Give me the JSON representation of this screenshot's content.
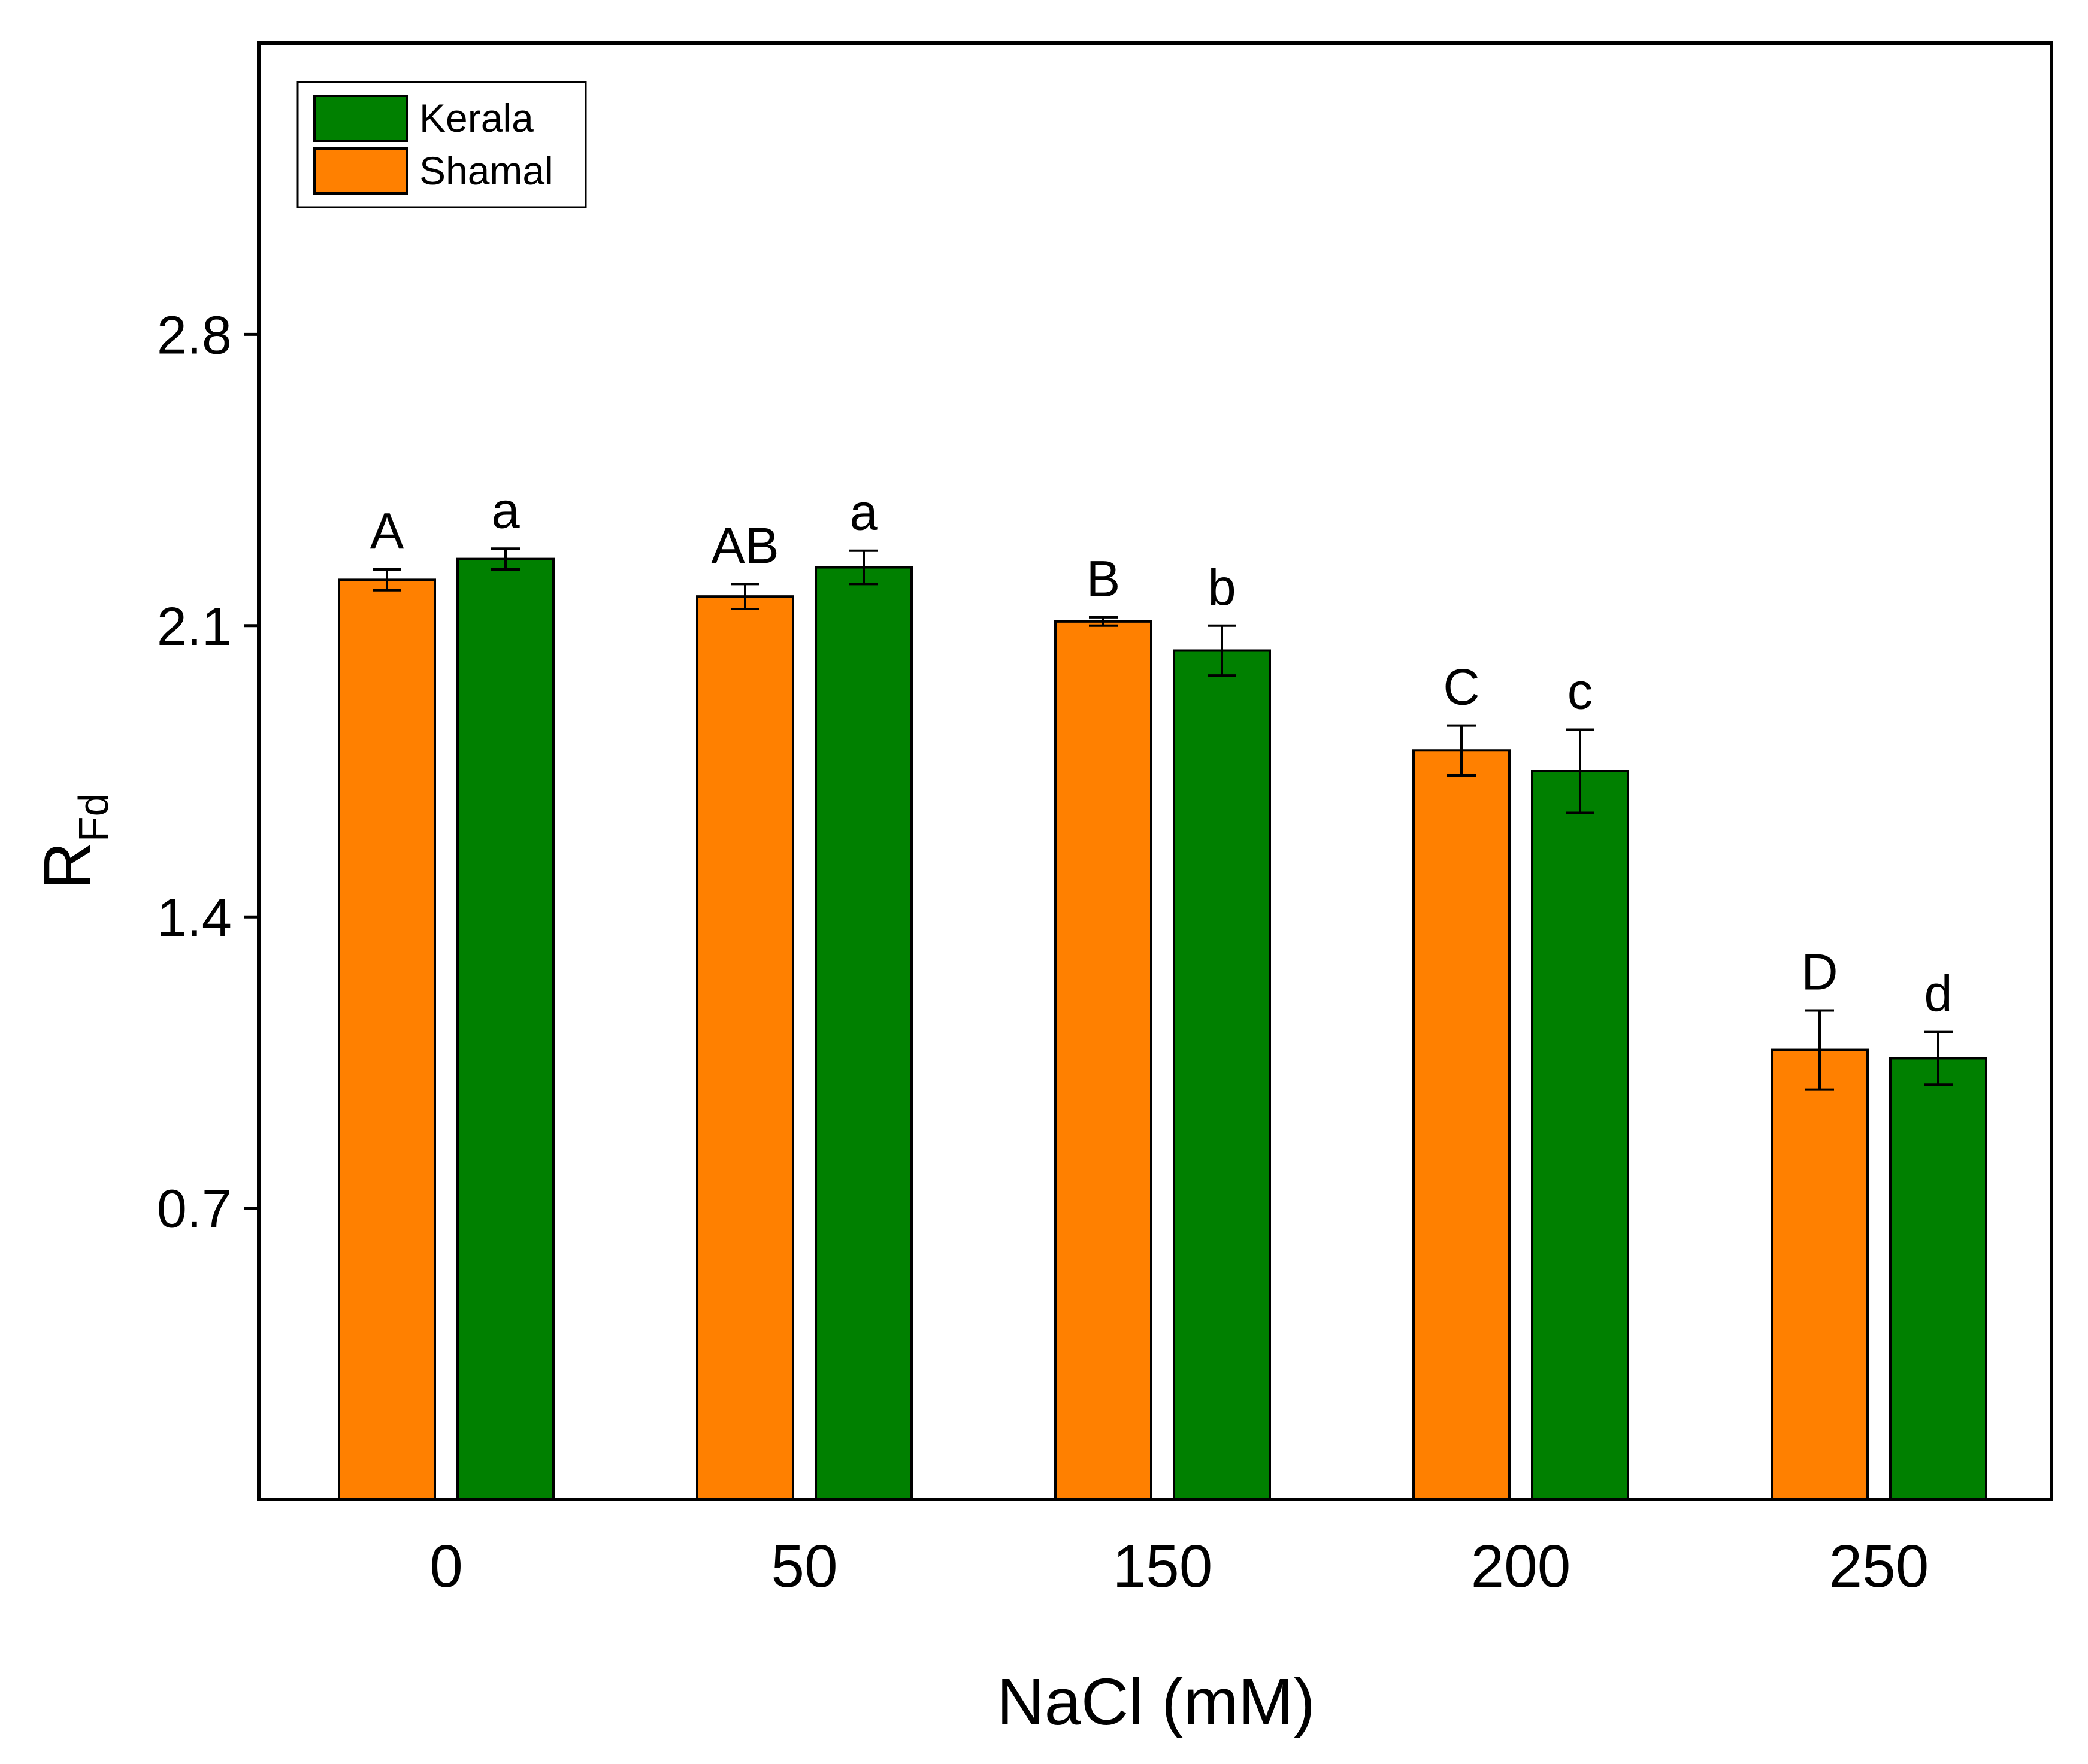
{
  "chart_data": {
    "type": "bar",
    "title": "",
    "xlabel": "NaCl (mM)",
    "ylabel": "R",
    "ylabel_subscript": "Fd",
    "ylim": [
      0,
      3.5
    ],
    "yticks": [
      0.7,
      1.4,
      2.1,
      2.8
    ],
    "ytick_labels": [
      "0.7",
      "1.4",
      "2.1",
      "2.8"
    ],
    "categories": [
      "0",
      "50",
      "150",
      "200",
      "250"
    ],
    "legend_position": "top-left",
    "grid": false,
    "series": [
      {
        "name": "Shamal",
        "color": "#ff8000",
        "values": [
          2.21,
          2.17,
          2.11,
          1.8,
          1.08
        ],
        "errors": [
          0.025,
          0.03,
          0.01,
          0.06,
          0.095
        ],
        "labels": [
          "A",
          "AB",
          "B",
          "C",
          "D"
        ]
      },
      {
        "name": "Kerala",
        "color": "#008000",
        "values": [
          2.26,
          2.24,
          2.04,
          1.75,
          1.06
        ],
        "errors": [
          0.025,
          0.04,
          0.06,
          0.1,
          0.063
        ],
        "labels": [
          "a",
          "a",
          "b",
          "c",
          "d"
        ]
      }
    ],
    "legend_order": [
      "Kerala",
      "Shamal"
    ]
  }
}
